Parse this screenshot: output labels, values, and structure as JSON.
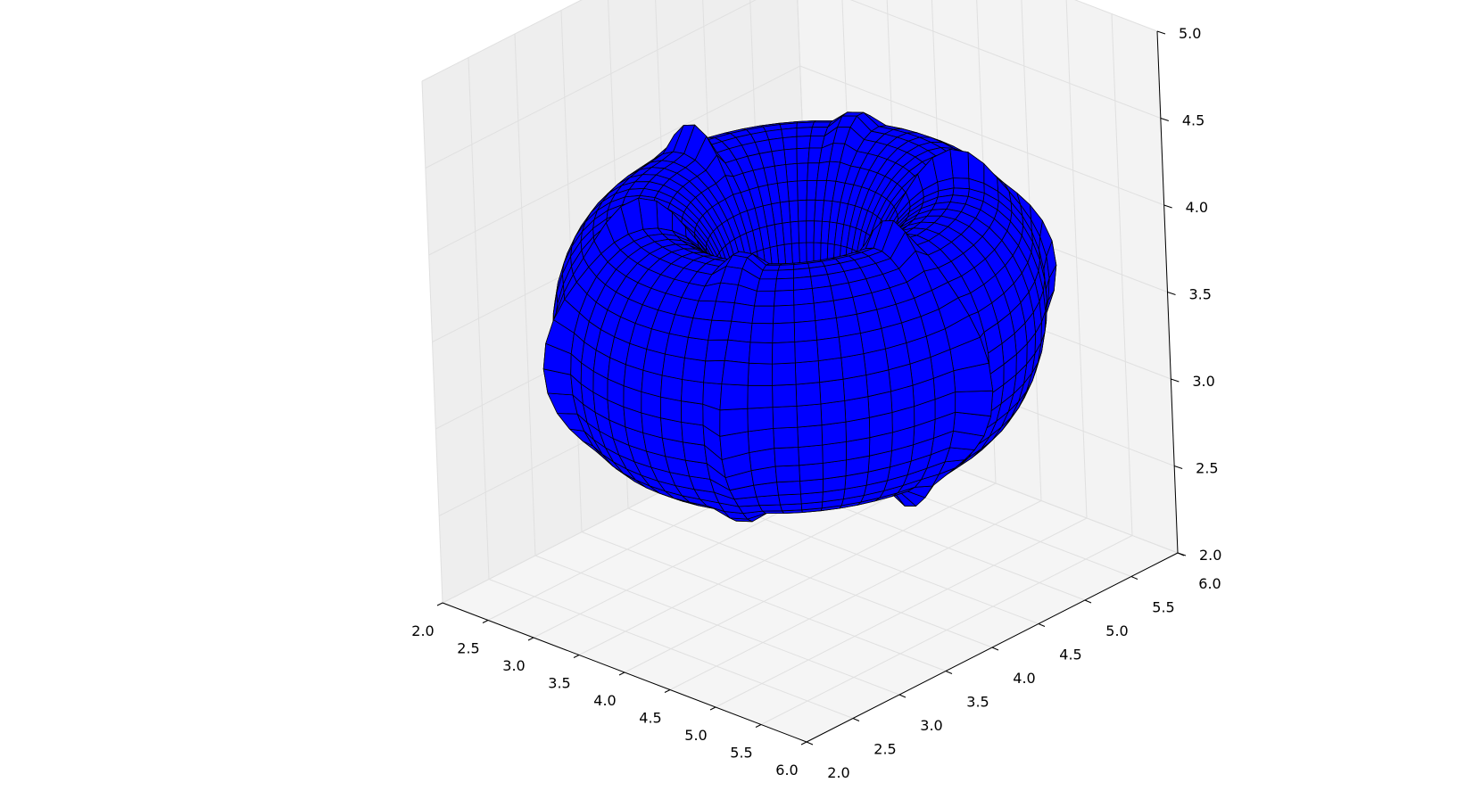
{
  "chart_data": {
    "type": "surface3d",
    "title": "",
    "xlabel": "",
    "ylabel": "",
    "zlabel": "",
    "grid": true,
    "surface": {
      "shape": "bumpy torus",
      "color": "#0000ff",
      "edge_color": "#000000",
      "center": [
        4.0,
        4.0,
        3.5
      ]
    },
    "axes": {
      "x": {
        "range": [
          2.0,
          6.0
        ],
        "ticks": [
          "2.0",
          "2.5",
          "3.0",
          "3.5",
          "4.0",
          "4.5",
          "5.0",
          "5.5",
          "6.0"
        ]
      },
      "y": {
        "range": [
          2.0,
          6.0
        ],
        "ticks": [
          "2.0",
          "2.5",
          "3.0",
          "3.5",
          "4.0",
          "4.5",
          "5.0",
          "5.5",
          "6.0"
        ]
      },
      "z": {
        "range": [
          2.0,
          5.0
        ],
        "ticks": [
          "2.0",
          "2.5",
          "3.0",
          "3.5",
          "4.0",
          "4.5",
          "5.0"
        ]
      }
    },
    "pane_color": "#f2f2f2",
    "grid_color": "#e0e0e0"
  }
}
